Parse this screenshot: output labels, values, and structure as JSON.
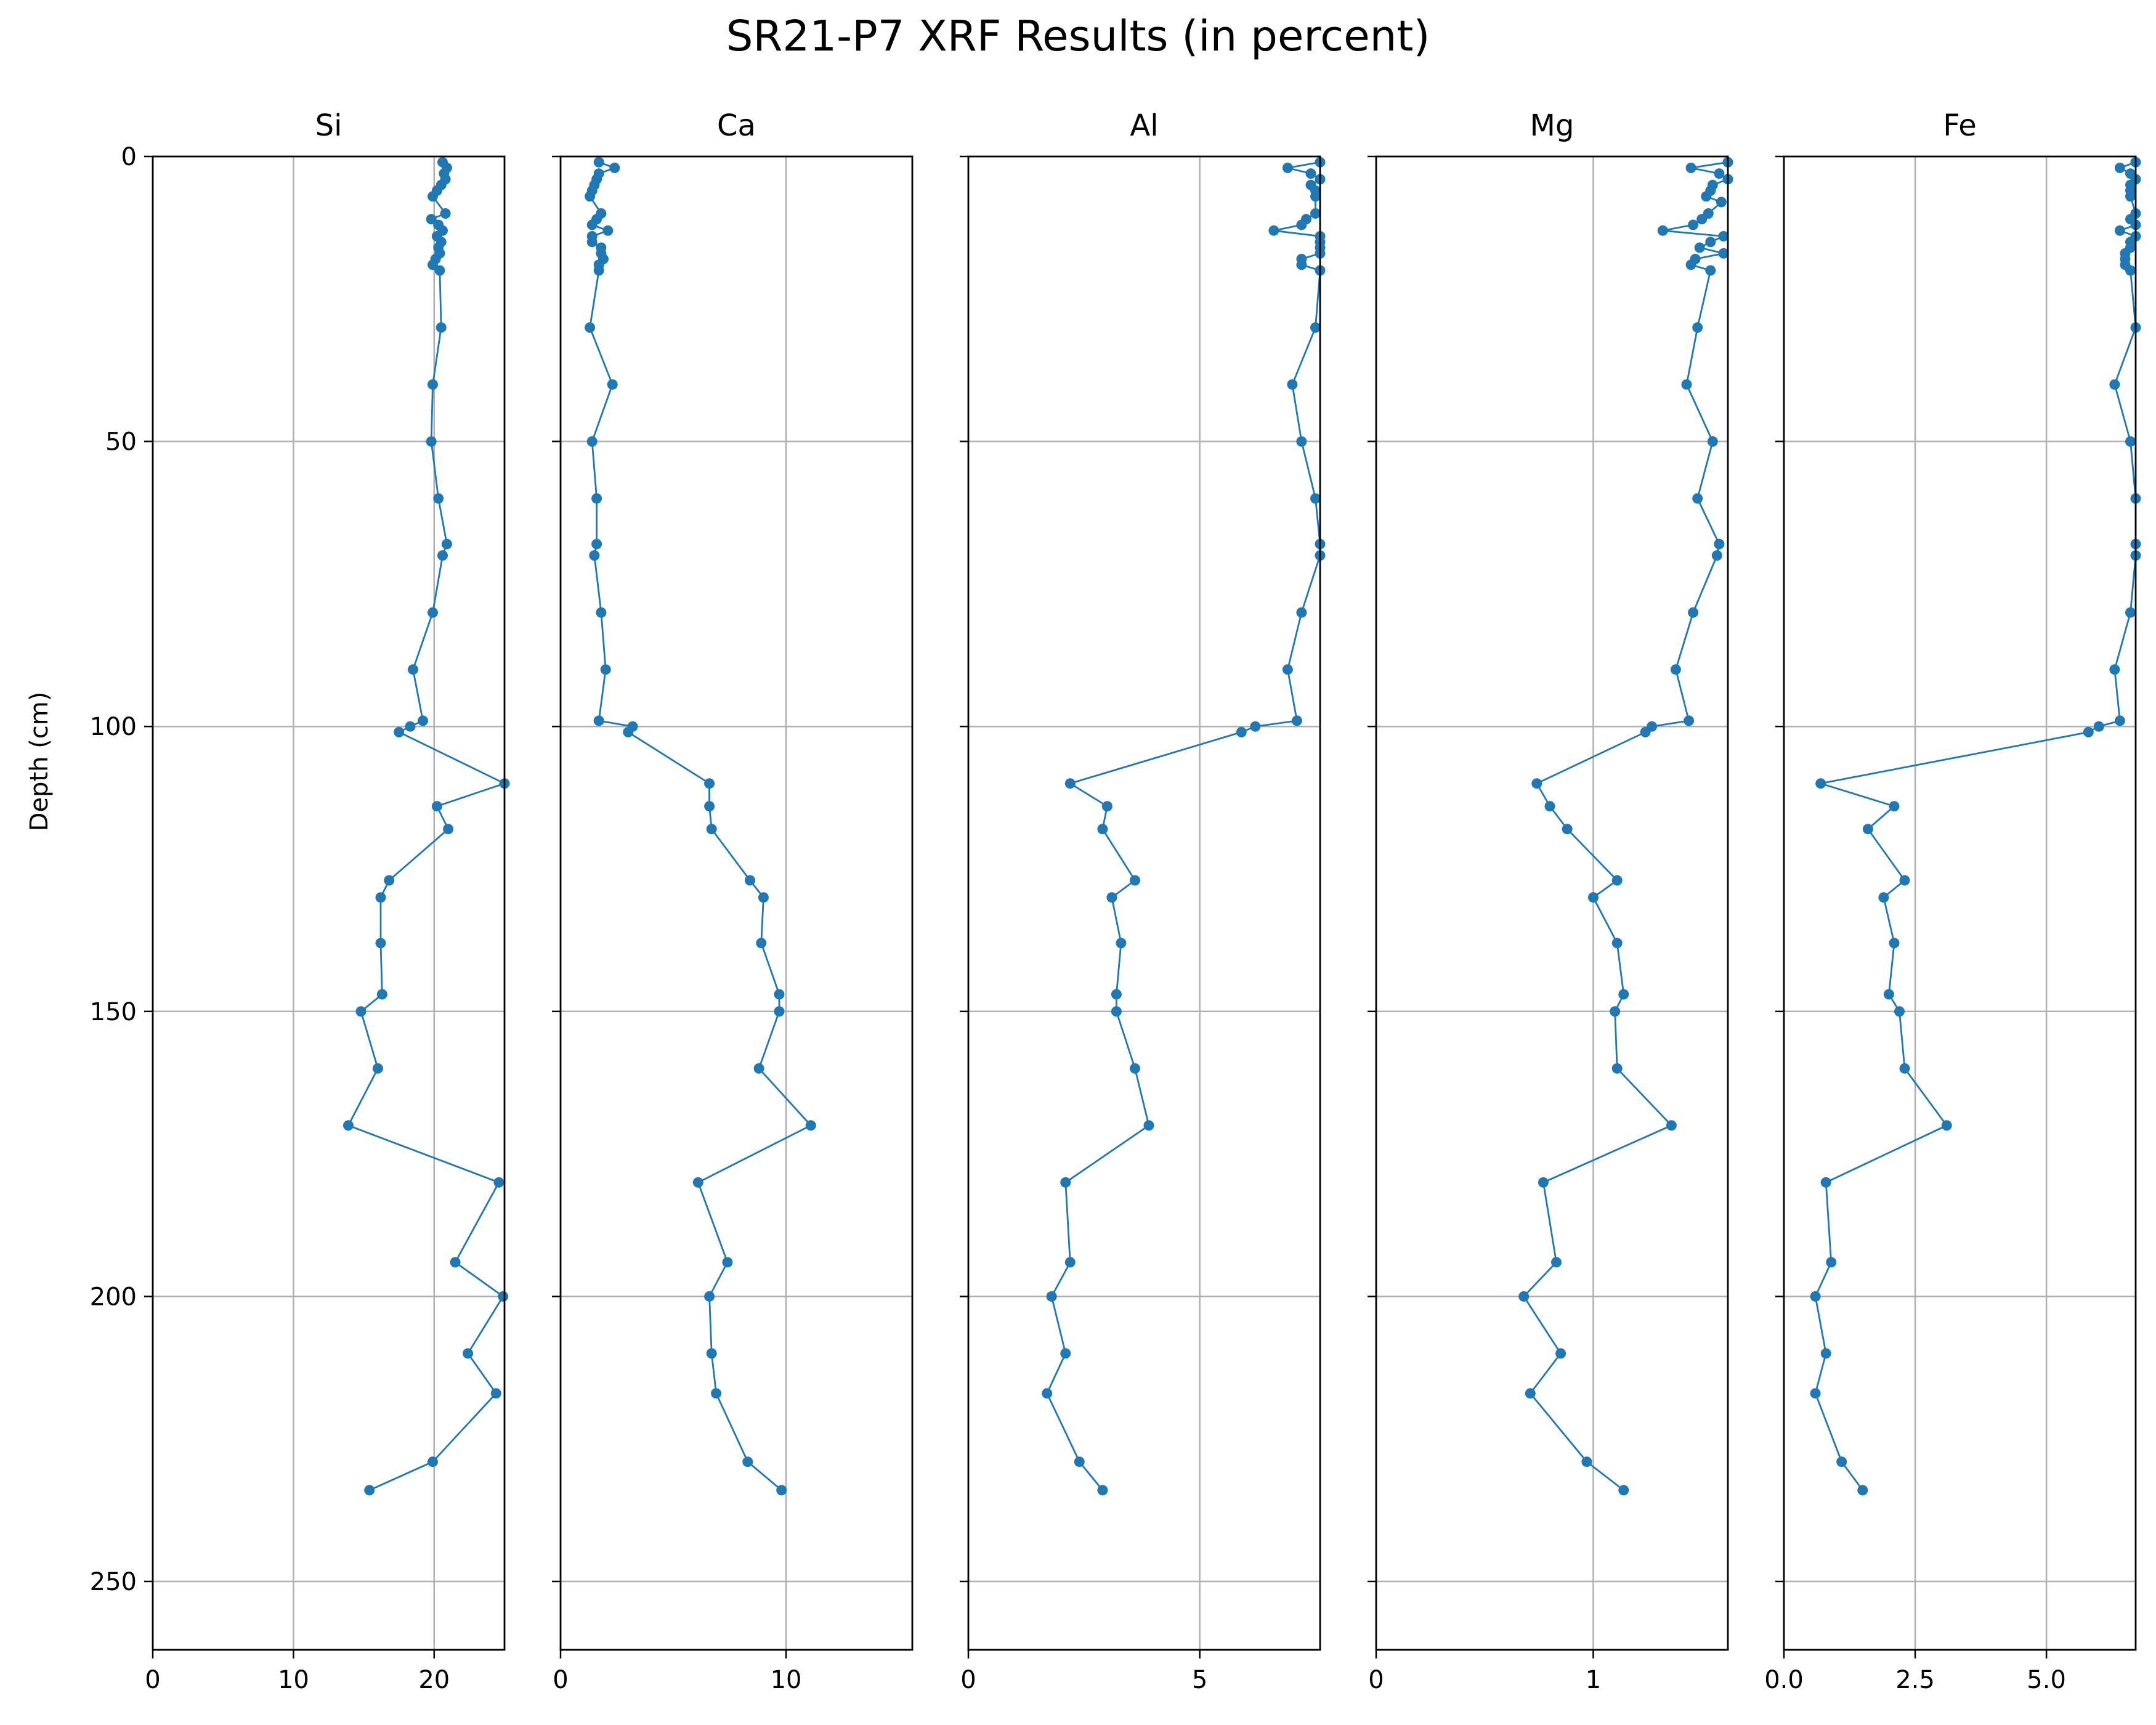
{
  "title": "SR21-P7 XRF Results (in percent)",
  "y_axis": {
    "label": "Depth (cm)",
    "range": [
      0,
      262
    ],
    "inverted": true,
    "ticks": [
      0,
      50,
      100,
      150,
      200,
      250
    ]
  },
  "style": {
    "line_color": "#1f77b4",
    "grid_color": "#b0b0b0",
    "grid": true
  },
  "chart_data": [
    {
      "type": "line",
      "title": "Si",
      "xlim": [
        0,
        25
      ],
      "xticks": [
        {
          "v": 0,
          "label": "0"
        },
        {
          "v": 10,
          "label": "10"
        },
        {
          "v": 20,
          "label": "20"
        }
      ],
      "series": [
        {
          "points": [
            [
              20.6,
              1
            ],
            [
              20.9,
              2
            ],
            [
              20.7,
              3
            ],
            [
              20.8,
              4
            ],
            [
              20.5,
              5
            ],
            [
              20.2,
              6
            ],
            [
              19.9,
              7
            ],
            [
              20.8,
              10
            ],
            [
              19.8,
              11
            ],
            [
              20.3,
              12
            ],
            [
              20.6,
              13
            ],
            [
              20.2,
              14
            ],
            [
              20.5,
              15
            ],
            [
              20.3,
              16
            ],
            [
              20.4,
              17
            ],
            [
              20.1,
              18
            ],
            [
              19.9,
              19
            ],
            [
              20.4,
              20
            ],
            [
              20.5,
              30
            ],
            [
              19.9,
              40
            ],
            [
              19.8,
              50
            ],
            [
              20.3,
              60
            ],
            [
              20.9,
              68
            ],
            [
              20.6,
              70
            ],
            [
              19.9,
              80
            ],
            [
              18.5,
              90
            ],
            [
              19.2,
              99
            ],
            [
              18.3,
              100
            ],
            [
              17.5,
              101
            ],
            [
              25.0,
              110
            ],
            [
              20.2,
              114
            ],
            [
              21.0,
              118
            ],
            [
              16.8,
              127
            ],
            [
              16.2,
              130
            ],
            [
              16.2,
              138
            ],
            [
              16.3,
              147
            ],
            [
              14.8,
              150
            ],
            [
              16.0,
              160
            ],
            [
              13.9,
              170
            ],
            [
              24.6,
              180
            ],
            [
              21.5,
              194
            ],
            [
              24.9,
              200
            ],
            [
              22.4,
              210
            ],
            [
              24.4,
              217
            ],
            [
              19.9,
              229
            ],
            [
              15.4,
              234
            ]
          ]
        }
      ]
    },
    {
      "type": "line",
      "title": "Ca",
      "xlim": [
        0,
        15.6
      ],
      "xticks": [
        {
          "v": 0,
          "label": "0"
        },
        {
          "v": 10,
          "label": "10"
        }
      ],
      "series": [
        {
          "points": [
            [
              1.7,
              1
            ],
            [
              2.4,
              2
            ],
            [
              1.7,
              3
            ],
            [
              1.6,
              4
            ],
            [
              1.5,
              5
            ],
            [
              1.4,
              6
            ],
            [
              1.3,
              7
            ],
            [
              1.8,
              10
            ],
            [
              1.6,
              11
            ],
            [
              1.4,
              12
            ],
            [
              2.1,
              13
            ],
            [
              1.4,
              14
            ],
            [
              1.4,
              15
            ],
            [
              1.8,
              16
            ],
            [
              1.8,
              17
            ],
            [
              1.9,
              18
            ],
            [
              1.7,
              19
            ],
            [
              1.7,
              20
            ],
            [
              1.3,
              30
            ],
            [
              2.3,
              40
            ],
            [
              1.4,
              50
            ],
            [
              1.6,
              60
            ],
            [
              1.6,
              68
            ],
            [
              1.5,
              70
            ],
            [
              1.8,
              80
            ],
            [
              2.0,
              90
            ],
            [
              1.7,
              99
            ],
            [
              3.2,
              100
            ],
            [
              3.0,
              101
            ],
            [
              6.6,
              110
            ],
            [
              6.6,
              114
            ],
            [
              6.7,
              118
            ],
            [
              8.4,
              127
            ],
            [
              9.0,
              130
            ],
            [
              8.9,
              138
            ],
            [
              9.7,
              147
            ],
            [
              9.7,
              150
            ],
            [
              8.8,
              160
            ],
            [
              11.1,
              170
            ],
            [
              6.1,
              180
            ],
            [
              7.4,
              194
            ],
            [
              6.6,
              200
            ],
            [
              6.7,
              210
            ],
            [
              6.9,
              217
            ],
            [
              8.3,
              229
            ],
            [
              9.8,
              234
            ]
          ]
        }
      ]
    },
    {
      "type": "line",
      "title": "Al",
      "xlim": [
        0,
        7.6
      ],
      "xticks": [
        {
          "v": 0,
          "label": "0"
        },
        {
          "v": 5,
          "label": "5"
        }
      ],
      "series": [
        {
          "points": [
            [
              7.6,
              1
            ],
            [
              6.9,
              2
            ],
            [
              7.4,
              3
            ],
            [
              7.6,
              4
            ],
            [
              7.4,
              5
            ],
            [
              7.5,
              6
            ],
            [
              7.5,
              7
            ],
            [
              7.5,
              10
            ],
            [
              7.3,
              11
            ],
            [
              7.2,
              12
            ],
            [
              6.6,
              13
            ],
            [
              7.6,
              14
            ],
            [
              7.6,
              15
            ],
            [
              7.6,
              16
            ],
            [
              7.6,
              17
            ],
            [
              7.2,
              18
            ],
            [
              7.2,
              19
            ],
            [
              7.6,
              20
            ],
            [
              7.5,
              30
            ],
            [
              7.0,
              40
            ],
            [
              7.2,
              50
            ],
            [
              7.5,
              60
            ],
            [
              7.6,
              68
            ],
            [
              7.6,
              70
            ],
            [
              7.2,
              80
            ],
            [
              6.9,
              90
            ],
            [
              7.1,
              99
            ],
            [
              6.2,
              100
            ],
            [
              5.9,
              101
            ],
            [
              2.2,
              110
            ],
            [
              3.0,
              114
            ],
            [
              2.9,
              118
            ],
            [
              3.6,
              127
            ],
            [
              3.1,
              130
            ],
            [
              3.3,
              138
            ],
            [
              3.2,
              147
            ],
            [
              3.2,
              150
            ],
            [
              3.6,
              160
            ],
            [
              3.9,
              170
            ],
            [
              2.1,
              180
            ],
            [
              2.2,
              194
            ],
            [
              1.8,
              200
            ],
            [
              2.1,
              210
            ],
            [
              1.7,
              217
            ],
            [
              2.4,
              229
            ],
            [
              2.9,
              234
            ]
          ]
        }
      ]
    },
    {
      "type": "line",
      "title": "Mg",
      "xlim": [
        0,
        1.62
      ],
      "xticks": [
        {
          "v": 0,
          "label": "0"
        },
        {
          "v": 1,
          "label": "1"
        }
      ],
      "series": [
        {
          "points": [
            [
              1.62,
              1
            ],
            [
              1.45,
              2
            ],
            [
              1.58,
              3
            ],
            [
              1.62,
              4
            ],
            [
              1.55,
              5
            ],
            [
              1.54,
              6
            ],
            [
              1.52,
              7
            ],
            [
              1.59,
              8
            ],
            [
              1.53,
              10
            ],
            [
              1.5,
              11
            ],
            [
              1.46,
              12
            ],
            [
              1.32,
              13
            ],
            [
              1.6,
              14
            ],
            [
              1.54,
              15
            ],
            [
              1.49,
              16
            ],
            [
              1.6,
              17
            ],
            [
              1.47,
              18
            ],
            [
              1.45,
              19
            ],
            [
              1.54,
              20
            ],
            [
              1.48,
              30
            ],
            [
              1.43,
              40
            ],
            [
              1.55,
              50
            ],
            [
              1.48,
              60
            ],
            [
              1.58,
              68
            ],
            [
              1.57,
              70
            ],
            [
              1.46,
              80
            ],
            [
              1.38,
              90
            ],
            [
              1.44,
              99
            ],
            [
              1.27,
              100
            ],
            [
              1.24,
              101
            ],
            [
              0.74,
              110
            ],
            [
              0.8,
              114
            ],
            [
              0.88,
              118
            ],
            [
              1.11,
              127
            ],
            [
              1.0,
              130
            ],
            [
              1.11,
              138
            ],
            [
              1.14,
              147
            ],
            [
              1.1,
              150
            ],
            [
              1.11,
              160
            ],
            [
              1.36,
              170
            ],
            [
              0.77,
              180
            ],
            [
              0.83,
              194
            ],
            [
              0.68,
              200
            ],
            [
              0.85,
              210
            ],
            [
              0.71,
              217
            ],
            [
              0.97,
              229
            ],
            [
              1.14,
              234
            ]
          ]
        }
      ]
    },
    {
      "type": "line",
      "title": "Fe",
      "xlim": [
        0,
        6.7
      ],
      "xticks": [
        {
          "v": 0,
          "label": "0.0"
        },
        {
          "v": 2.5,
          "label": "2.5"
        },
        {
          "v": 5,
          "label": "5.0"
        }
      ],
      "series": [
        {
          "points": [
            [
              6.7,
              1
            ],
            [
              6.4,
              2
            ],
            [
              6.6,
              3
            ],
            [
              6.7,
              4
            ],
            [
              6.6,
              5
            ],
            [
              6.6,
              6
            ],
            [
              6.6,
              7
            ],
            [
              6.7,
              10
            ],
            [
              6.6,
              11
            ],
            [
              6.7,
              12
            ],
            [
              6.4,
              13
            ],
            [
              6.7,
              14
            ],
            [
              6.6,
              15
            ],
            [
              6.6,
              16
            ],
            [
              6.5,
              17
            ],
            [
              6.5,
              18
            ],
            [
              6.5,
              19
            ],
            [
              6.6,
              20
            ],
            [
              6.7,
              30
            ],
            [
              6.3,
              40
            ],
            [
              6.6,
              50
            ],
            [
              6.7,
              60
            ],
            [
              6.7,
              68
            ],
            [
              6.7,
              70
            ],
            [
              6.6,
              80
            ],
            [
              6.3,
              90
            ],
            [
              6.4,
              99
            ],
            [
              6.0,
              100
            ],
            [
              5.8,
              101
            ],
            [
              0.7,
              110
            ],
            [
              2.1,
              114
            ],
            [
              1.6,
              118
            ],
            [
              2.3,
              127
            ],
            [
              1.9,
              130
            ],
            [
              2.1,
              138
            ],
            [
              2.0,
              147
            ],
            [
              2.2,
              150
            ],
            [
              2.3,
              160
            ],
            [
              3.1,
              170
            ],
            [
              0.8,
              180
            ],
            [
              0.9,
              194
            ],
            [
              0.6,
              200
            ],
            [
              0.8,
              210
            ],
            [
              0.6,
              217
            ],
            [
              1.1,
              229
            ],
            [
              1.5,
              234
            ]
          ]
        }
      ]
    }
  ]
}
